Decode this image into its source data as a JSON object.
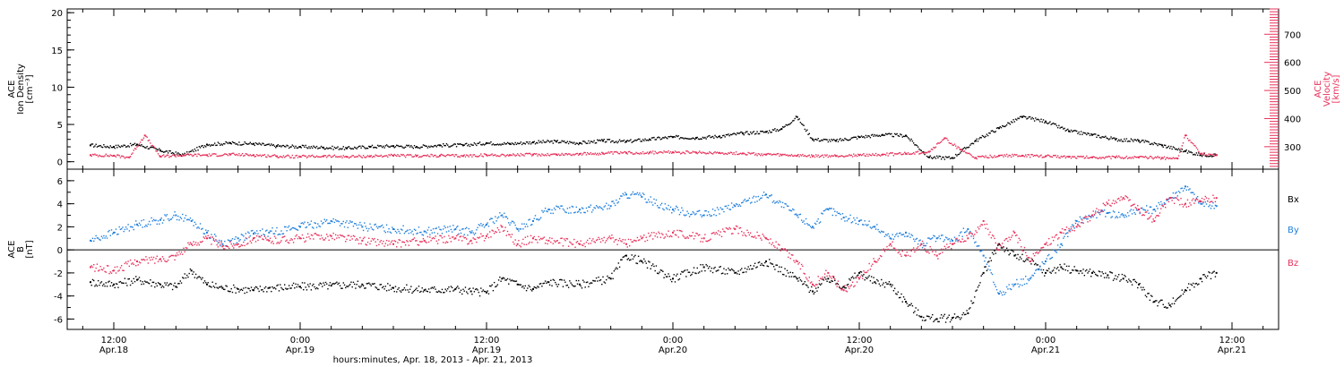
{
  "x_axis": {
    "title": "hours:minutes, Apr. 18, 2013 - Apr. 21, 2013",
    "ticks": [
      {
        "hour": 12,
        "label1": "12:00",
        "label2": "Apr.18"
      },
      {
        "hour": 24,
        "label1": "0:00",
        "label2": "Apr.19"
      },
      {
        "hour": 36,
        "label1": "12:00",
        "label2": "Apr.19"
      },
      {
        "hour": 48,
        "label1": "0:00",
        "label2": "Apr.20"
      },
      {
        "hour": 60,
        "label1": "12:00",
        "label2": "Apr.20"
      },
      {
        "hour": 72,
        "label1": "0:00",
        "label2": "Apr.21"
      },
      {
        "hour": 84,
        "label1": "12:00",
        "label2": "Apr.21"
      }
    ]
  },
  "colors": {
    "black": "#000000",
    "pink": "#e8305a",
    "blue": "#1f7fdc"
  },
  "chart_data": [
    {
      "type": "scatter",
      "panel": "top",
      "ylabel": [
        "ACE",
        "Ion Density",
        "[cm⁻³]"
      ],
      "ylim": [
        -1,
        20.5
      ],
      "yticks": [
        0,
        5,
        10,
        15,
        20
      ],
      "y2label": [
        "ACE",
        "Velocity",
        "[km/s]"
      ],
      "y2lim": [
        220,
        790
      ],
      "y2ticks": [
        300,
        400,
        500,
        600,
        700
      ],
      "series": [
        {
          "name": "Ion Density",
          "color": "#000000",
          "x": [
            10.5,
            12,
            13.5,
            15,
            16.5,
            18,
            19.5,
            21,
            22.5,
            24,
            25.5,
            27,
            28.5,
            30,
            31.5,
            33,
            34.5,
            36,
            37.5,
            39,
            40.5,
            42,
            43.5,
            45,
            46.5,
            48,
            49.5,
            51,
            52.5,
            54,
            55,
            56,
            57,
            58.5,
            60,
            61.5,
            63,
            64.5,
            66,
            67.5,
            69,
            70.5,
            72,
            73.5,
            75,
            76.5,
            78,
            79.5,
            81,
            82,
            83
          ],
          "y": [
            2.2,
            2.0,
            2.3,
            1.5,
            0.9,
            2.3,
            2.5,
            2.4,
            2.1,
            2.0,
            1.9,
            1.8,
            2.0,
            2.1,
            2.0,
            2.2,
            2.2,
            2.5,
            2.4,
            2.6,
            2.7,
            2.5,
            2.8,
            2.7,
            3.0,
            3.3,
            3.2,
            3.4,
            3.8,
            4.0,
            4.4,
            6.0,
            3.0,
            2.8,
            3.3,
            3.6,
            3.5,
            0.6,
            0.5,
            2.8,
            4.5,
            6.0,
            5.4,
            4.1,
            3.6,
            3.0,
            2.8,
            2.2,
            1.4,
            0.9,
            0.9
          ]
        },
        {
          "name": "Velocity",
          "color": "#e8305a",
          "x": [
            10.5,
            12,
            13,
            14,
            15,
            16.5,
            18,
            19.5,
            21,
            22.5,
            24,
            25.5,
            27,
            28.5,
            30,
            31.5,
            33,
            34.5,
            36,
            37.5,
            39,
            40.5,
            42,
            43.5,
            45,
            46.5,
            48,
            49.5,
            51,
            52.5,
            54,
            55,
            56,
            57,
            58.5,
            60,
            61.5,
            63,
            64.5,
            65.5,
            66.5,
            67.5,
            69,
            70.5,
            72,
            73.5,
            75,
            76.5,
            78,
            79.5,
            80.5,
            81,
            82,
            83
          ],
          "y": [
            270,
            268,
            262,
            340,
            265,
            270,
            270,
            272,
            270,
            266,
            264,
            266,
            264,
            266,
            268,
            267,
            268,
            267,
            270,
            270,
            272,
            272,
            274,
            276,
            278,
            279,
            280,
            279,
            278,
            276,
            272,
            270,
            268,
            266,
            267,
            270,
            272,
            275,
            282,
            330,
            290,
            260,
            268,
            268,
            266,
            264,
            262,
            262,
            262,
            260,
            258,
            340,
            275,
            270
          ]
        }
      ]
    },
    {
      "type": "scatter",
      "panel": "bottom",
      "ylabel": [
        "ACE",
        "B",
        "[nT]"
      ],
      "ylim": [
        -6.9,
        7
      ],
      "yticks": [
        -6,
        -4,
        -2,
        0,
        2,
        4,
        6
      ],
      "zero_line": true,
      "legend_position": "right",
      "series": [
        {
          "name": "Bx",
          "color": "#000000",
          "x": [
            10.5,
            12,
            13.5,
            15,
            16,
            17,
            18,
            19,
            20,
            21,
            22,
            24,
            26,
            28,
            30,
            32,
            34,
            35,
            36,
            37,
            38,
            39,
            40,
            42,
            44,
            45,
            46,
            48,
            50,
            52,
            54,
            56,
            57,
            58,
            59,
            60,
            61,
            62,
            63,
            64,
            65,
            66,
            67,
            68,
            69,
            70,
            71,
            72,
            73,
            74,
            75,
            76,
            77,
            78,
            79,
            80,
            81,
            82,
            83
          ],
          "y": [
            -2.8,
            -3.0,
            -2.6,
            -3.0,
            -3.2,
            -1.8,
            -3.0,
            -3.3,
            -3.4,
            -3.5,
            -3.3,
            -3.2,
            -3.1,
            -3.0,
            -3.3,
            -3.5,
            -3.4,
            -3.6,
            -3.7,
            -2.5,
            -3.0,
            -3.4,
            -2.8,
            -3.0,
            -2.5,
            -0.5,
            -1.0,
            -2.5,
            -1.5,
            -2.0,
            -1.0,
            -2.5,
            -3.6,
            -2.5,
            -3.2,
            -2.0,
            -2.8,
            -3.0,
            -4.5,
            -5.8,
            -6.0,
            -5.9,
            -5.5,
            -2.0,
            0.5,
            -0.5,
            -1.0,
            -2.0,
            -1.5,
            -1.8,
            -2.0,
            -2.2,
            -2.5,
            -3.0,
            -4.5,
            -4.8,
            -3.5,
            -2.5,
            -2.0
          ]
        },
        {
          "name": "By",
          "color": "#1f7fdc",
          "x": [
            10.5,
            12,
            13.5,
            15,
            16,
            17,
            18,
            19,
            20,
            21,
            22,
            24,
            26,
            28,
            30,
            32,
            34,
            35,
            36,
            37,
            38,
            39,
            40,
            42,
            44,
            45,
            46,
            48,
            50,
            52,
            54,
            56,
            57,
            58,
            59,
            60,
            61,
            62,
            63,
            64,
            65,
            66,
            67,
            68,
            69,
            70,
            71,
            72,
            73,
            74,
            75,
            76,
            77,
            78,
            79,
            80,
            81,
            82,
            83
          ],
          "y": [
            0.8,
            1.5,
            2.2,
            2.6,
            3.0,
            2.5,
            1.5,
            0.5,
            1.0,
            1.4,
            1.5,
            2.0,
            2.5,
            2.0,
            1.8,
            1.6,
            1.8,
            1.5,
            2.2,
            3.0,
            1.8,
            2.5,
            3.5,
            3.5,
            3.8,
            4.8,
            4.6,
            3.5,
            3.0,
            3.8,
            4.8,
            3.0,
            2.0,
            3.5,
            2.8,
            2.5,
            2.0,
            1.0,
            1.5,
            0.5,
            1.0,
            0.8,
            1.8,
            -0.5,
            -3.8,
            -3.0,
            -2.5,
            -1.0,
            0.5,
            2.5,
            3.0,
            3.2,
            3.0,
            3.5,
            3.5,
            4.5,
            5.5,
            4.0,
            3.8
          ]
        },
        {
          "name": "Bz",
          "color": "#e8305a",
          "x": [
            10.5,
            12,
            13.5,
            15,
            16,
            17,
            18,
            19,
            20,
            21,
            22,
            24,
            26,
            28,
            30,
            32,
            34,
            35,
            36,
            37,
            38,
            39,
            40,
            42,
            44,
            45,
            46,
            48,
            50,
            52,
            54,
            56,
            57,
            58,
            59,
            60,
            61,
            62,
            63,
            64,
            65,
            66,
            67,
            68,
            69,
            70,
            71,
            72,
            73,
            74,
            75,
            76,
            77,
            78,
            79,
            80,
            81,
            82,
            83
          ],
          "y": [
            -1.5,
            -1.8,
            -1.0,
            -0.8,
            -0.5,
            0.5,
            1.0,
            0.3,
            0.5,
            1.0,
            0.8,
            1.0,
            1.2,
            0.8,
            0.5,
            0.8,
            1.0,
            0.8,
            1.2,
            2.0,
            0.5,
            1.0,
            0.8,
            0.5,
            1.0,
            0.5,
            1.0,
            1.5,
            1.0,
            1.8,
            1.0,
            -1.0,
            -3.0,
            -2.0,
            -3.5,
            -2.5,
            -1.0,
            0.5,
            -0.5,
            0.5,
            -0.5,
            0.5,
            1.0,
            2.5,
            0.0,
            1.5,
            -1.0,
            0.5,
            1.5,
            2.0,
            3.0,
            4.0,
            4.5,
            3.5,
            2.5,
            4.5,
            4.0,
            4.2,
            4.5
          ]
        }
      ]
    }
  ]
}
